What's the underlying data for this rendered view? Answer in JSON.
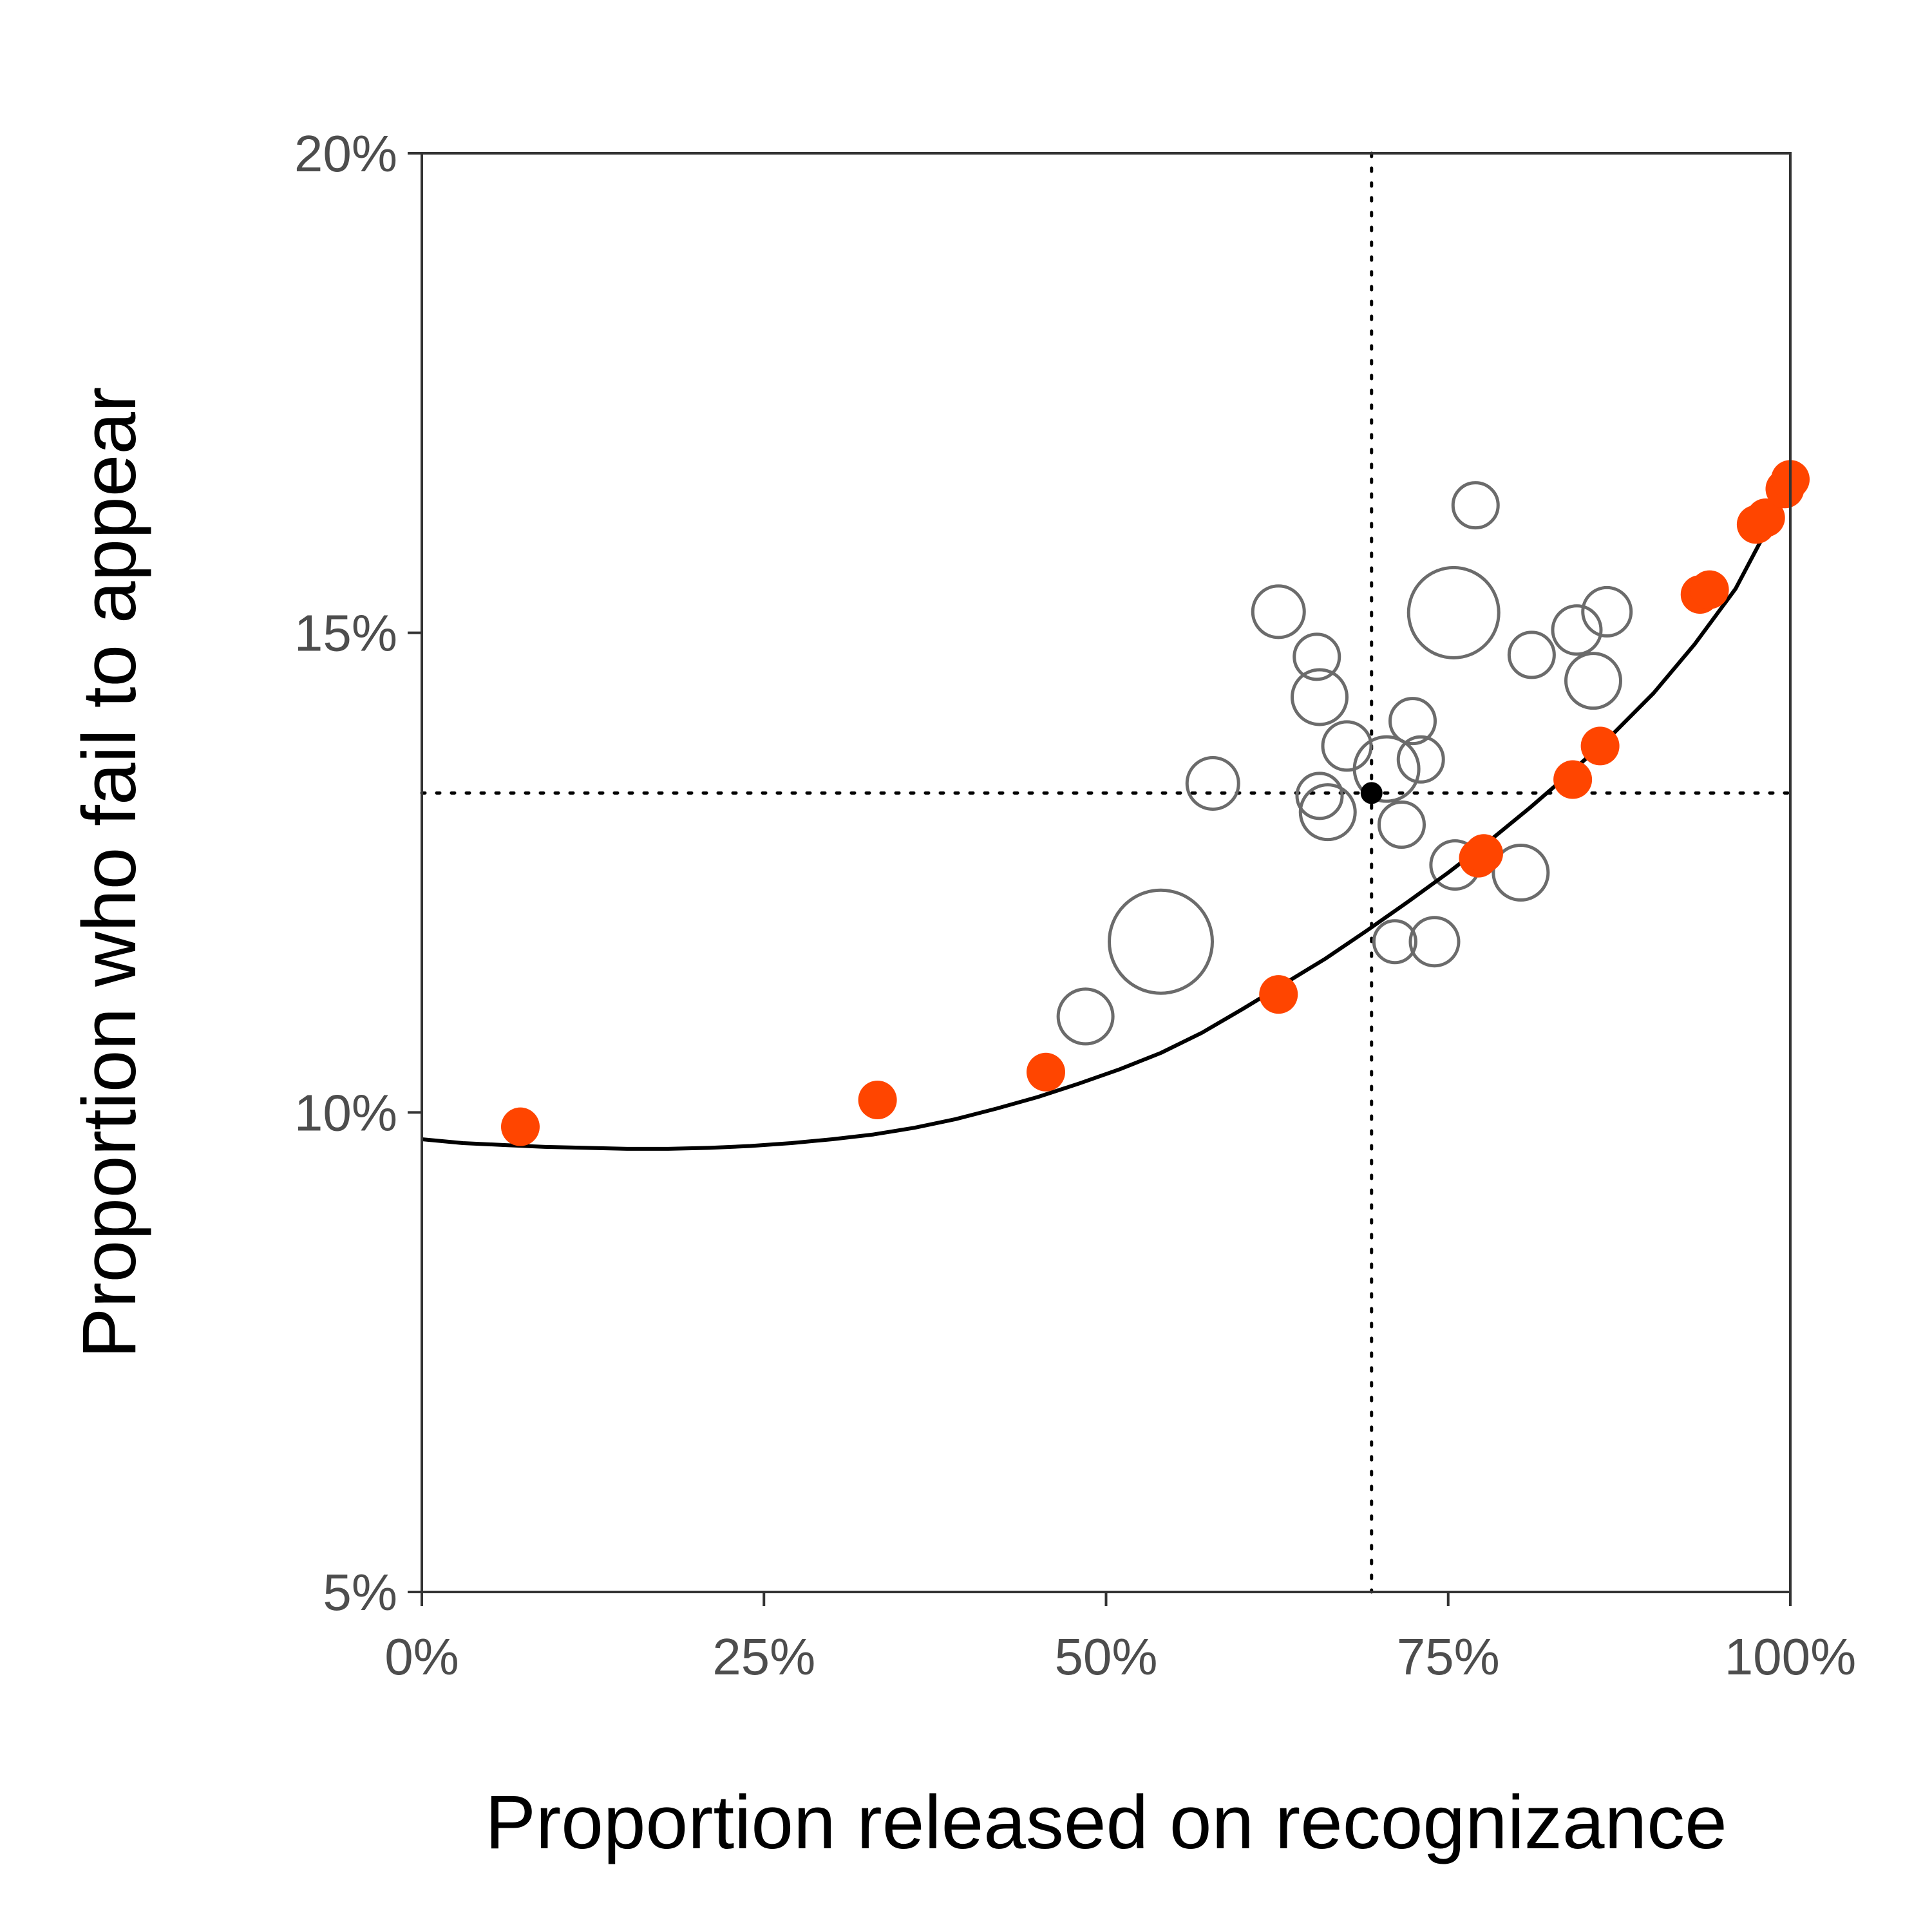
{
  "chart_data": {
    "type": "scatter",
    "title": "",
    "xlabel": "Proportion released on recognizance",
    "ylabel": "Proportion who fail to appear",
    "xlim": [
      0,
      1
    ],
    "ylim": [
      0.05,
      0.2
    ],
    "x_ticks": [
      {
        "value": 0,
        "label": "0%"
      },
      {
        "value": 0.25,
        "label": "25%"
      },
      {
        "value": 0.5,
        "label": "50%"
      },
      {
        "value": 0.75,
        "label": "75%"
      },
      {
        "value": 1,
        "label": "100%"
      }
    ],
    "y_ticks": [
      {
        "value": 0.05,
        "label": "5%"
      },
      {
        "value": 0.1,
        "label": "10%"
      },
      {
        "value": 0.15,
        "label": "15%"
      },
      {
        "value": 0.2,
        "label": "20%"
      }
    ],
    "grid": false,
    "legend": "none",
    "reference_point": {
      "x": 0.694,
      "y": 0.1333
    },
    "curve": {
      "x": [
        0,
        0.03,
        0.06,
        0.09,
        0.12,
        0.15,
        0.18,
        0.21,
        0.24,
        0.27,
        0.3,
        0.33,
        0.36,
        0.39,
        0.42,
        0.45,
        0.48,
        0.51,
        0.54,
        0.57,
        0.6,
        0.63,
        0.66,
        0.69,
        0.72,
        0.75,
        0.78,
        0.81,
        0.84,
        0.87,
        0.9,
        0.93,
        0.96,
        0.98
      ],
      "y": [
        0.0972,
        0.0968,
        0.0966,
        0.0964,
        0.0963,
        0.0962,
        0.0962,
        0.0963,
        0.0965,
        0.0968,
        0.0972,
        0.0977,
        0.0984,
        0.0993,
        0.1004,
        0.1016,
        0.103,
        0.1045,
        0.1062,
        0.1083,
        0.1108,
        0.1134,
        0.116,
        0.1189,
        0.1219,
        0.125,
        0.1283,
        0.1318,
        0.1355,
        0.1394,
        0.1437,
        0.1488,
        0.1546,
        0.16
      ]
    },
    "series": [
      {
        "style": "hollow",
        "color": "#6b6b6b",
        "points": [
          {
            "x": 0.77,
            "y": 0.1633,
            "size": 0.7
          },
          {
            "x": 0.626,
            "y": 0.1522,
            "size": 0.8
          },
          {
            "x": 0.754,
            "y": 0.1521,
            "size": 1.4
          },
          {
            "x": 0.866,
            "y": 0.1522,
            "size": 0.75
          },
          {
            "x": 0.844,
            "y": 0.1503,
            "size": 0.75
          },
          {
            "x": 0.811,
            "y": 0.1477,
            "size": 0.7
          },
          {
            "x": 0.654,
            "y": 0.1475,
            "size": 0.7
          },
          {
            "x": 0.856,
            "y": 0.145,
            "size": 0.85
          },
          {
            "x": 0.656,
            "y": 0.1433,
            "size": 0.85
          },
          {
            "x": 0.724,
            "y": 0.1408,
            "size": 0.7
          },
          {
            "x": 0.676,
            "y": 0.1382,
            "size": 0.75
          },
          {
            "x": 0.73,
            "y": 0.1368,
            "size": 0.7
          },
          {
            "x": 0.705,
            "y": 0.1358,
            "size": 1.0
          },
          {
            "x": 0.578,
            "y": 0.1343,
            "size": 0.8
          },
          {
            "x": 0.656,
            "y": 0.133,
            "size": 0.7
          },
          {
            "x": 0.662,
            "y": 0.1313,
            "size": 0.85
          },
          {
            "x": 0.716,
            "y": 0.13,
            "size": 0.7
          },
          {
            "x": 0.755,
            "y": 0.1258,
            "size": 0.75
          },
          {
            "x": 0.803,
            "y": 0.125,
            "size": 0.85
          },
          {
            "x": 0.54,
            "y": 0.1178,
            "size": 1.6
          },
          {
            "x": 0.711,
            "y": 0.1178,
            "size": 0.65
          },
          {
            "x": 0.74,
            "y": 0.1178,
            "size": 0.75
          },
          {
            "x": 0.485,
            "y": 0.11,
            "size": 0.85
          }
        ]
      },
      {
        "style": "filled",
        "color": "#ff4500",
        "points": [
          {
            "x": 0.072,
            "y": 0.0985
          },
          {
            "x": 0.333,
            "y": 0.1013
          },
          {
            "x": 0.456,
            "y": 0.1042
          },
          {
            "x": 0.626,
            "y": 0.1123
          },
          {
            "x": 0.772,
            "y": 0.1265
          },
          {
            "x": 0.776,
            "y": 0.127
          },
          {
            "x": 0.841,
            "y": 0.1347
          },
          {
            "x": 0.861,
            "y": 0.1382
          },
          {
            "x": 0.934,
            "y": 0.154
          },
          {
            "x": 0.941,
            "y": 0.1545
          },
          {
            "x": 0.975,
            "y": 0.1613
          },
          {
            "x": 0.982,
            "y": 0.162
          },
          {
            "x": 0.996,
            "y": 0.165
          },
          {
            "x": 1.0,
            "y": 0.166
          }
        ]
      }
    ]
  }
}
